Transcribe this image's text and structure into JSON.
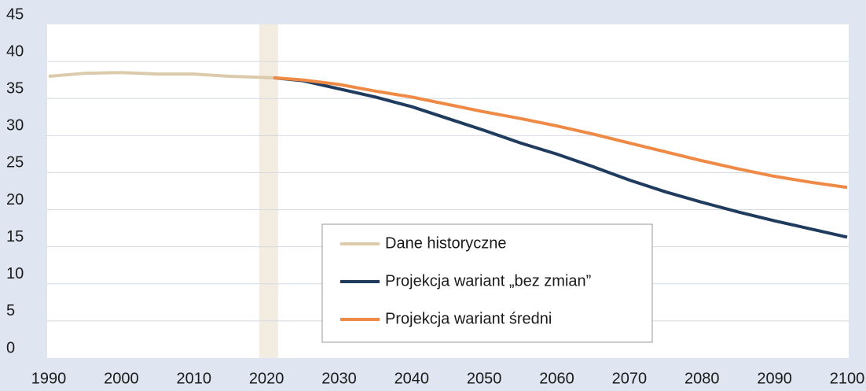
{
  "chart_data": {
    "type": "line",
    "xlim": [
      1990,
      2100
    ],
    "xticks": [
      1990,
      2000,
      2010,
      2020,
      2030,
      2040,
      2050,
      2060,
      2070,
      2080,
      2090,
      2100
    ],
    "ylim": [
      0,
      45
    ],
    "yticks": [
      0,
      5,
      10,
      15,
      20,
      25,
      30,
      35,
      40,
      45
    ],
    "grid": true,
    "highlight": {
      "xlim": [
        2019,
        2021.6
      ],
      "color": "#f3ede1"
    },
    "legend": "bottom-center",
    "series": [
      {
        "name": "Dane historyczne",
        "color": "#dccbaa",
        "x": [
          1990,
          1995,
          2000,
          2005,
          2010,
          2015,
          2021
        ],
        "values": [
          38.0,
          38.4,
          38.5,
          38.3,
          38.3,
          38.0,
          37.8
        ]
      },
      {
        "name": "Projekcja wariant „bez zmian”",
        "color": "#1f3b5e",
        "x": [
          2021,
          2025,
          2030,
          2035,
          2040,
          2045,
          2050,
          2055,
          2060,
          2065,
          2070,
          2075,
          2080,
          2085,
          2090,
          2095,
          2100
        ],
        "values": [
          37.8,
          37.4,
          36.3,
          35.2,
          33.9,
          32.3,
          30.7,
          29.0,
          27.5,
          25.8,
          24.0,
          22.4,
          21.0,
          19.7,
          18.5,
          17.4,
          16.3
        ]
      },
      {
        "name": "Projekcja wariant średni",
        "color": "#ee8a45",
        "x": [
          2021,
          2025,
          2030,
          2035,
          2040,
          2045,
          2050,
          2055,
          2060,
          2065,
          2070,
          2075,
          2080,
          2085,
          2090,
          2095,
          2100
        ],
        "values": [
          37.8,
          37.5,
          36.9,
          36.0,
          35.2,
          34.2,
          33.2,
          32.3,
          31.3,
          30.2,
          29.0,
          27.8,
          26.6,
          25.5,
          24.5,
          23.7,
          23.0
        ]
      }
    ]
  }
}
